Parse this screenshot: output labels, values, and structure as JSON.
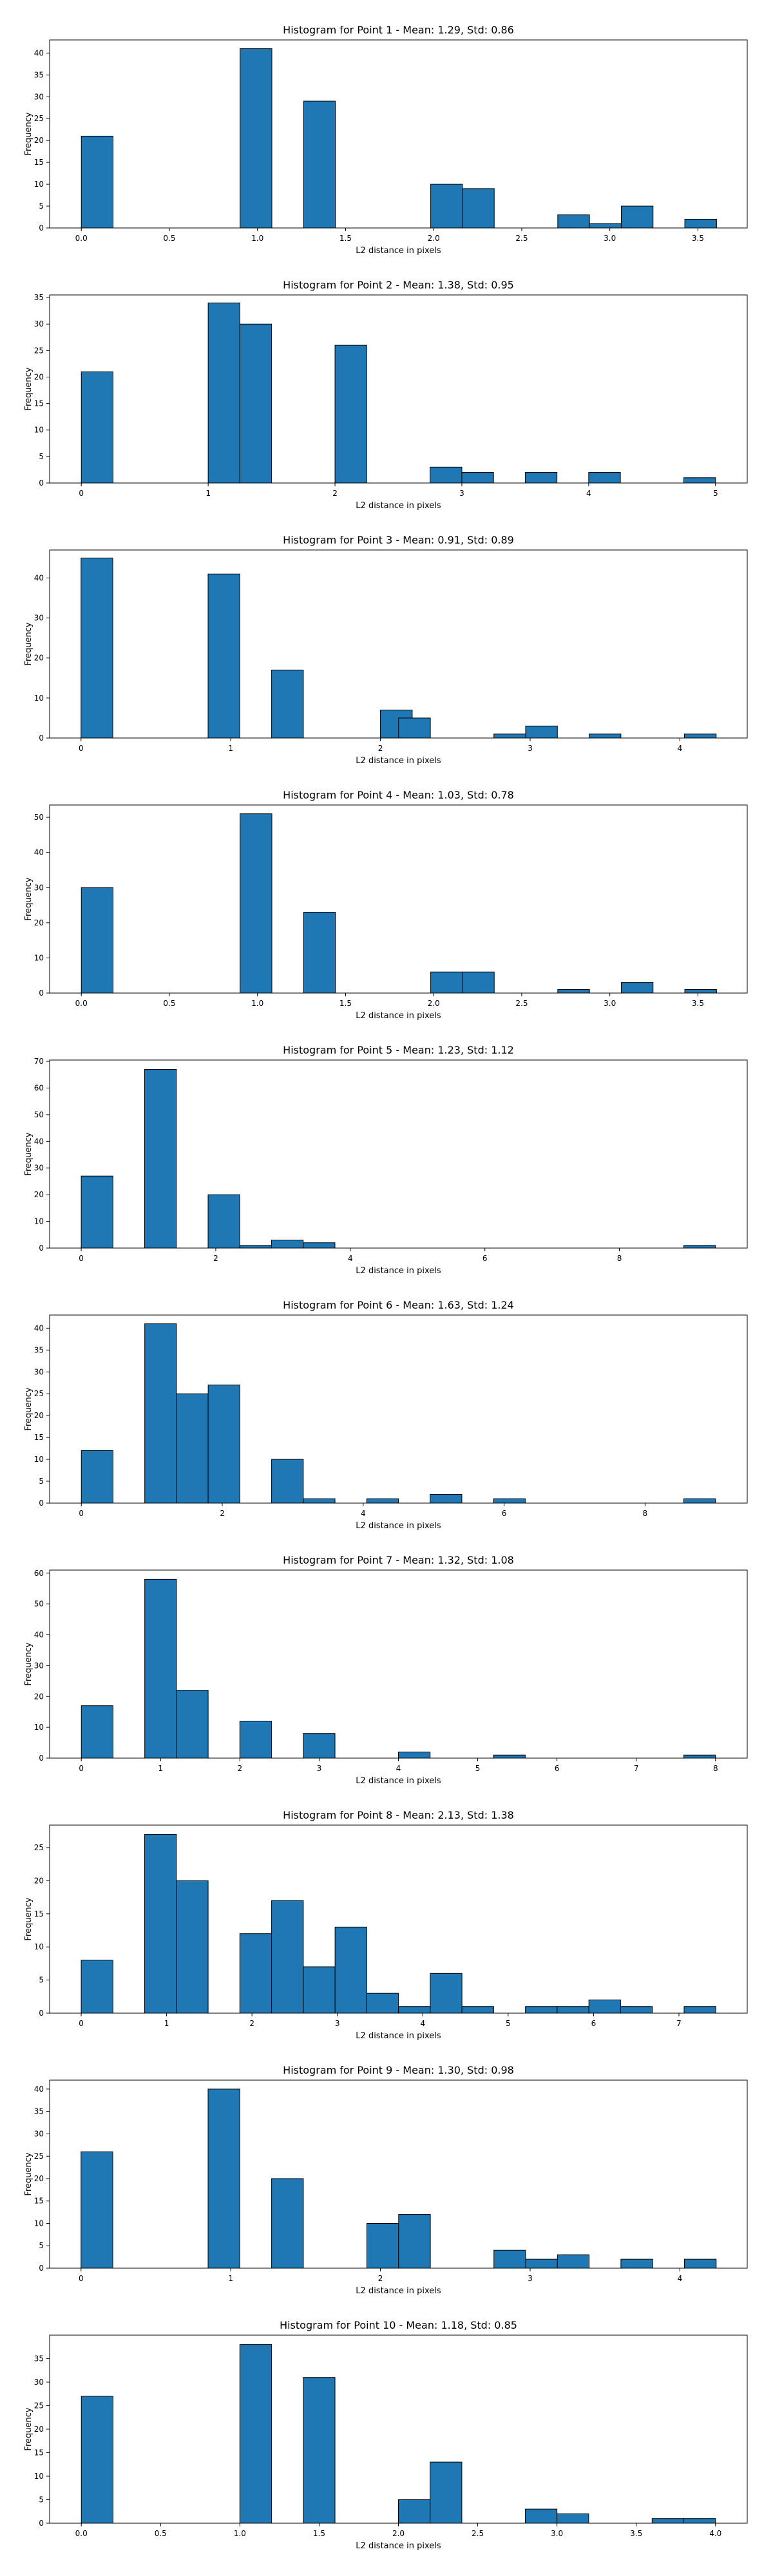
{
  "style": {
    "bar_color": "#1f77b4",
    "edge_color": "#000000"
  },
  "chart_data": [
    {
      "type": "bar",
      "title": "Histogram for Point 1 - Mean: 1.29, Std: 0.86",
      "xlabel": "L2 distance in pixels",
      "ylabel": "Frequency",
      "xlim": [
        -0.18,
        3.78
      ],
      "ylim": [
        0,
        43
      ],
      "xticks": [
        0.0,
        0.5,
        1.0,
        1.5,
        2.0,
        2.5,
        3.0,
        3.5
      ],
      "xtick_labels": [
        "0.0",
        "0.5",
        "1.0",
        "1.5",
        "2.0",
        "2.5",
        "3.0",
        "3.5"
      ],
      "yticks": [
        0,
        5,
        10,
        15,
        20,
        25,
        30,
        35,
        40
      ],
      "bin_width": 0.1803,
      "bins": [
        {
          "x": 0.0,
          "count": 21
        },
        {
          "x": 0.9014,
          "count": 41
        },
        {
          "x": 1.262,
          "count": 29
        },
        {
          "x": 1.9832,
          "count": 10
        },
        {
          "x": 2.1635,
          "count": 9
        },
        {
          "x": 2.7044,
          "count": 3
        },
        {
          "x": 2.8847,
          "count": 1
        },
        {
          "x": 3.065,
          "count": 5
        },
        {
          "x": 3.4256,
          "count": 2
        }
      ]
    },
    {
      "type": "bar",
      "title": "Histogram for Point 2 - Mean: 1.38, Std: 0.95",
      "xlabel": "L2 distance in pixels",
      "ylabel": "Frequency",
      "xlim": [
        -0.25,
        5.25
      ],
      "ylim": [
        0,
        35.5
      ],
      "xticks": [
        0,
        1,
        2,
        3,
        4,
        5
      ],
      "xtick_labels": [
        "0",
        "1",
        "2",
        "3",
        "4",
        "5"
      ],
      "yticks": [
        0,
        5,
        10,
        15,
        20,
        25,
        30,
        35
      ],
      "bin_width": 0.25,
      "bins": [
        {
          "x": 0.0,
          "count": 21
        },
        {
          "x": 1.0,
          "count": 34
        },
        {
          "x": 1.25,
          "count": 30
        },
        {
          "x": 2.0,
          "count": 26
        },
        {
          "x": 2.75,
          "count": 3
        },
        {
          "x": 3.0,
          "count": 2
        },
        {
          "x": 3.5,
          "count": 2
        },
        {
          "x": 4.0,
          "count": 2
        },
        {
          "x": 4.75,
          "count": 1
        }
      ]
    },
    {
      "type": "bar",
      "title": "Histogram for Point 3 - Mean: 0.91, Std: 0.89",
      "xlabel": "L2 distance in pixels",
      "ylabel": "Frequency",
      "xlim": [
        -0.21,
        4.45
      ],
      "ylim": [
        0,
        47
      ],
      "xticks": [
        0,
        1,
        2,
        3,
        4
      ],
      "xtick_labels": [
        "0",
        "1",
        "2",
        "3",
        "4"
      ],
      "yticks": [
        0,
        10,
        20,
        30,
        40
      ],
      "bin_width": 0.2121,
      "bins": [
        {
          "x": 0.0,
          "count": 45
        },
        {
          "x": 0.8485,
          "count": 41
        },
        {
          "x": 1.2728,
          "count": 17
        },
        {
          "x": 2.0,
          "count": 7
        },
        {
          "x": 2.1213,
          "count": 5
        },
        {
          "x": 2.7577,
          "count": 1
        },
        {
          "x": 2.9698,
          "count": 3
        },
        {
          "x": 3.394,
          "count": 1
        },
        {
          "x": 4.0305,
          "count": 1
        }
      ]
    },
    {
      "type": "bar",
      "title": "Histogram for Point 4 - Mean: 1.03, Std: 0.78",
      "xlabel": "L2 distance in pixels",
      "ylabel": "Frequency",
      "xlim": [
        -0.18,
        3.78
      ],
      "ylim": [
        0,
        53.5
      ],
      "xticks": [
        0.0,
        0.5,
        1.0,
        1.5,
        2.0,
        2.5,
        3.0,
        3.5
      ],
      "xtick_labels": [
        "0.0",
        "0.5",
        "1.0",
        "1.5",
        "2.0",
        "2.5",
        "3.0",
        "3.5"
      ],
      "yticks": [
        0,
        10,
        20,
        30,
        40,
        50
      ],
      "bin_width": 0.1803,
      "bins": [
        {
          "x": 0.0,
          "count": 30
        },
        {
          "x": 0.9014,
          "count": 51
        },
        {
          "x": 1.262,
          "count": 23
        },
        {
          "x": 1.9832,
          "count": 6
        },
        {
          "x": 2.1635,
          "count": 6
        },
        {
          "x": 2.7044,
          "count": 1
        },
        {
          "x": 3.065,
          "count": 3
        },
        {
          "x": 3.4256,
          "count": 1
        }
      ]
    },
    {
      "type": "bar",
      "title": "Histogram for Point 5 - Mean: 1.23, Std: 1.12",
      "xlabel": "L2 distance in pixels",
      "ylabel": "Frequency",
      "xlim": [
        -0.47,
        9.9
      ],
      "ylim": [
        0,
        70.5
      ],
      "xticks": [
        0,
        2,
        4,
        6,
        8
      ],
      "xtick_labels": [
        "0",
        "2",
        "4",
        "6",
        "8"
      ],
      "yticks": [
        0,
        10,
        20,
        30,
        40,
        50,
        60,
        70
      ],
      "bin_width": 0.4714,
      "bins": [
        {
          "x": 0.0,
          "count": 27
        },
        {
          "x": 0.9428,
          "count": 67
        },
        {
          "x": 1.8856,
          "count": 20
        },
        {
          "x": 2.357,
          "count": 1
        },
        {
          "x": 2.8284,
          "count": 3
        },
        {
          "x": 3.2998,
          "count": 2
        },
        {
          "x": 8.9566,
          "count": 1
        }
      ]
    },
    {
      "type": "bar",
      "title": "Histogram for Point 6 - Mean: 1.63, Std: 1.24",
      "xlabel": "L2 distance in pixels",
      "ylabel": "Frequency",
      "xlim": [
        -0.45,
        9.45
      ],
      "ylim": [
        0,
        43
      ],
      "xticks": [
        0,
        2,
        4,
        6,
        8
      ],
      "xtick_labels": [
        "0",
        "2",
        "4",
        "6",
        "8"
      ],
      "yticks": [
        0,
        5,
        10,
        15,
        20,
        25,
        30,
        35,
        40
      ],
      "bin_width": 0.45,
      "bins": [
        {
          "x": 0.0,
          "count": 12
        },
        {
          "x": 0.9,
          "count": 41
        },
        {
          "x": 1.35,
          "count": 25
        },
        {
          "x": 1.8,
          "count": 27
        },
        {
          "x": 2.7,
          "count": 10
        },
        {
          "x": 3.15,
          "count": 1
        },
        {
          "x": 4.05,
          "count": 1
        },
        {
          "x": 4.95,
          "count": 2
        },
        {
          "x": 5.85,
          "count": 1
        },
        {
          "x": 8.55,
          "count": 1
        }
      ]
    },
    {
      "type": "bar",
      "title": "Histogram for Point 7 - Mean: 1.32, Std: 1.08",
      "xlabel": "L2 distance in pixels",
      "ylabel": "Frequency",
      "xlim": [
        -0.4,
        8.4
      ],
      "ylim": [
        0,
        61
      ],
      "xticks": [
        0,
        1,
        2,
        3,
        4,
        5,
        6,
        7,
        8
      ],
      "xtick_labels": [
        "0",
        "1",
        "2",
        "3",
        "4",
        "5",
        "6",
        "7",
        "8"
      ],
      "yticks": [
        0,
        10,
        20,
        30,
        40,
        50,
        60
      ],
      "bin_width": 0.4,
      "bins": [
        {
          "x": 0.0,
          "count": 17
        },
        {
          "x": 0.8,
          "count": 58
        },
        {
          "x": 1.2,
          "count": 22
        },
        {
          "x": 2.0,
          "count": 12
        },
        {
          "x": 2.8,
          "count": 8
        },
        {
          "x": 4.0,
          "count": 2
        },
        {
          "x": 5.2,
          "count": 1
        },
        {
          "x": 7.6,
          "count": 1
        }
      ]
    },
    {
      "type": "bar",
      "title": "Histogram for Point 8 - Mean: 2.13, Std: 1.38",
      "xlabel": "L2 distance in pixels",
      "ylabel": "Frequency",
      "xlim": [
        -0.37,
        7.8
      ],
      "ylim": [
        0,
        28.4
      ],
      "xticks": [
        0,
        1,
        2,
        3,
        4,
        5,
        6,
        7
      ],
      "xtick_labels": [
        "0",
        "1",
        "2",
        "3",
        "4",
        "5",
        "6",
        "7"
      ],
      "yticks": [
        0,
        5,
        10,
        15,
        20,
        25
      ],
      "bin_width": 0.3716,
      "bins": [
        {
          "x": 0.0,
          "count": 8
        },
        {
          "x": 0.7432,
          "count": 27
        },
        {
          "x": 1.1148,
          "count": 20
        },
        {
          "x": 1.858,
          "count": 12
        },
        {
          "x": 2.2296,
          "count": 17
        },
        {
          "x": 2.6012,
          "count": 7
        },
        {
          "x": 2.9728,
          "count": 13
        },
        {
          "x": 3.3444,
          "count": 3
        },
        {
          "x": 3.716,
          "count": 1
        },
        {
          "x": 4.0876,
          "count": 6
        },
        {
          "x": 4.4592,
          "count": 1
        },
        {
          "x": 5.2024,
          "count": 1
        },
        {
          "x": 5.574,
          "count": 1
        },
        {
          "x": 5.9456,
          "count": 2
        },
        {
          "x": 6.3172,
          "count": 1
        },
        {
          "x": 7.0604,
          "count": 1
        }
      ]
    },
    {
      "type": "bar",
      "title": "Histogram for Point 9 - Mean: 1.30, Std: 0.98",
      "xlabel": "L2 distance in pixels",
      "ylabel": "Frequency",
      "xlim": [
        -0.21,
        4.45
      ],
      "ylim": [
        0,
        42
      ],
      "xticks": [
        0,
        1,
        2,
        3,
        4
      ],
      "xtick_labels": [
        "0",
        "1",
        "2",
        "3",
        "4"
      ],
      "yticks": [
        0,
        5,
        10,
        15,
        20,
        25,
        30,
        35,
        40
      ],
      "bin_width": 0.2121,
      "bins": [
        {
          "x": 0.0,
          "count": 26
        },
        {
          "x": 0.8485,
          "count": 40
        },
        {
          "x": 1.2728,
          "count": 20
        },
        {
          "x": 1.9092,
          "count": 10
        },
        {
          "x": 2.1213,
          "count": 12
        },
        {
          "x": 2.7577,
          "count": 4
        },
        {
          "x": 2.9698,
          "count": 2
        },
        {
          "x": 3.182,
          "count": 3
        },
        {
          "x": 3.6062,
          "count": 2
        },
        {
          "x": 4.0305,
          "count": 2
        }
      ]
    },
    {
      "type": "bar",
      "title": "Histogram for Point 10 - Mean: 1.18, Std: 0.85",
      "xlabel": "L2 distance in pixels",
      "ylabel": "Frequency",
      "xlim": [
        -0.2,
        4.2
      ],
      "ylim": [
        0,
        40
      ],
      "xticks": [
        0.0,
        0.5,
        1.0,
        1.5,
        2.0,
        2.5,
        3.0,
        3.5,
        4.0
      ],
      "xtick_labels": [
        "0.0",
        "0.5",
        "1.0",
        "1.5",
        "2.0",
        "2.5",
        "3.0",
        "3.5",
        "4.0"
      ],
      "yticks": [
        0,
        5,
        10,
        15,
        20,
        25,
        30,
        35
      ],
      "bin_width": 0.2,
      "bins": [
        {
          "x": 0.0,
          "count": 27
        },
        {
          "x": 1.0,
          "count": 38
        },
        {
          "x": 1.4,
          "count": 31
        },
        {
          "x": 2.0,
          "count": 5
        },
        {
          "x": 2.2,
          "count": 13
        },
        {
          "x": 2.8,
          "count": 3
        },
        {
          "x": 3.0,
          "count": 2
        },
        {
          "x": 3.6,
          "count": 1
        },
        {
          "x": 3.8,
          "count": 1
        }
      ]
    }
  ]
}
